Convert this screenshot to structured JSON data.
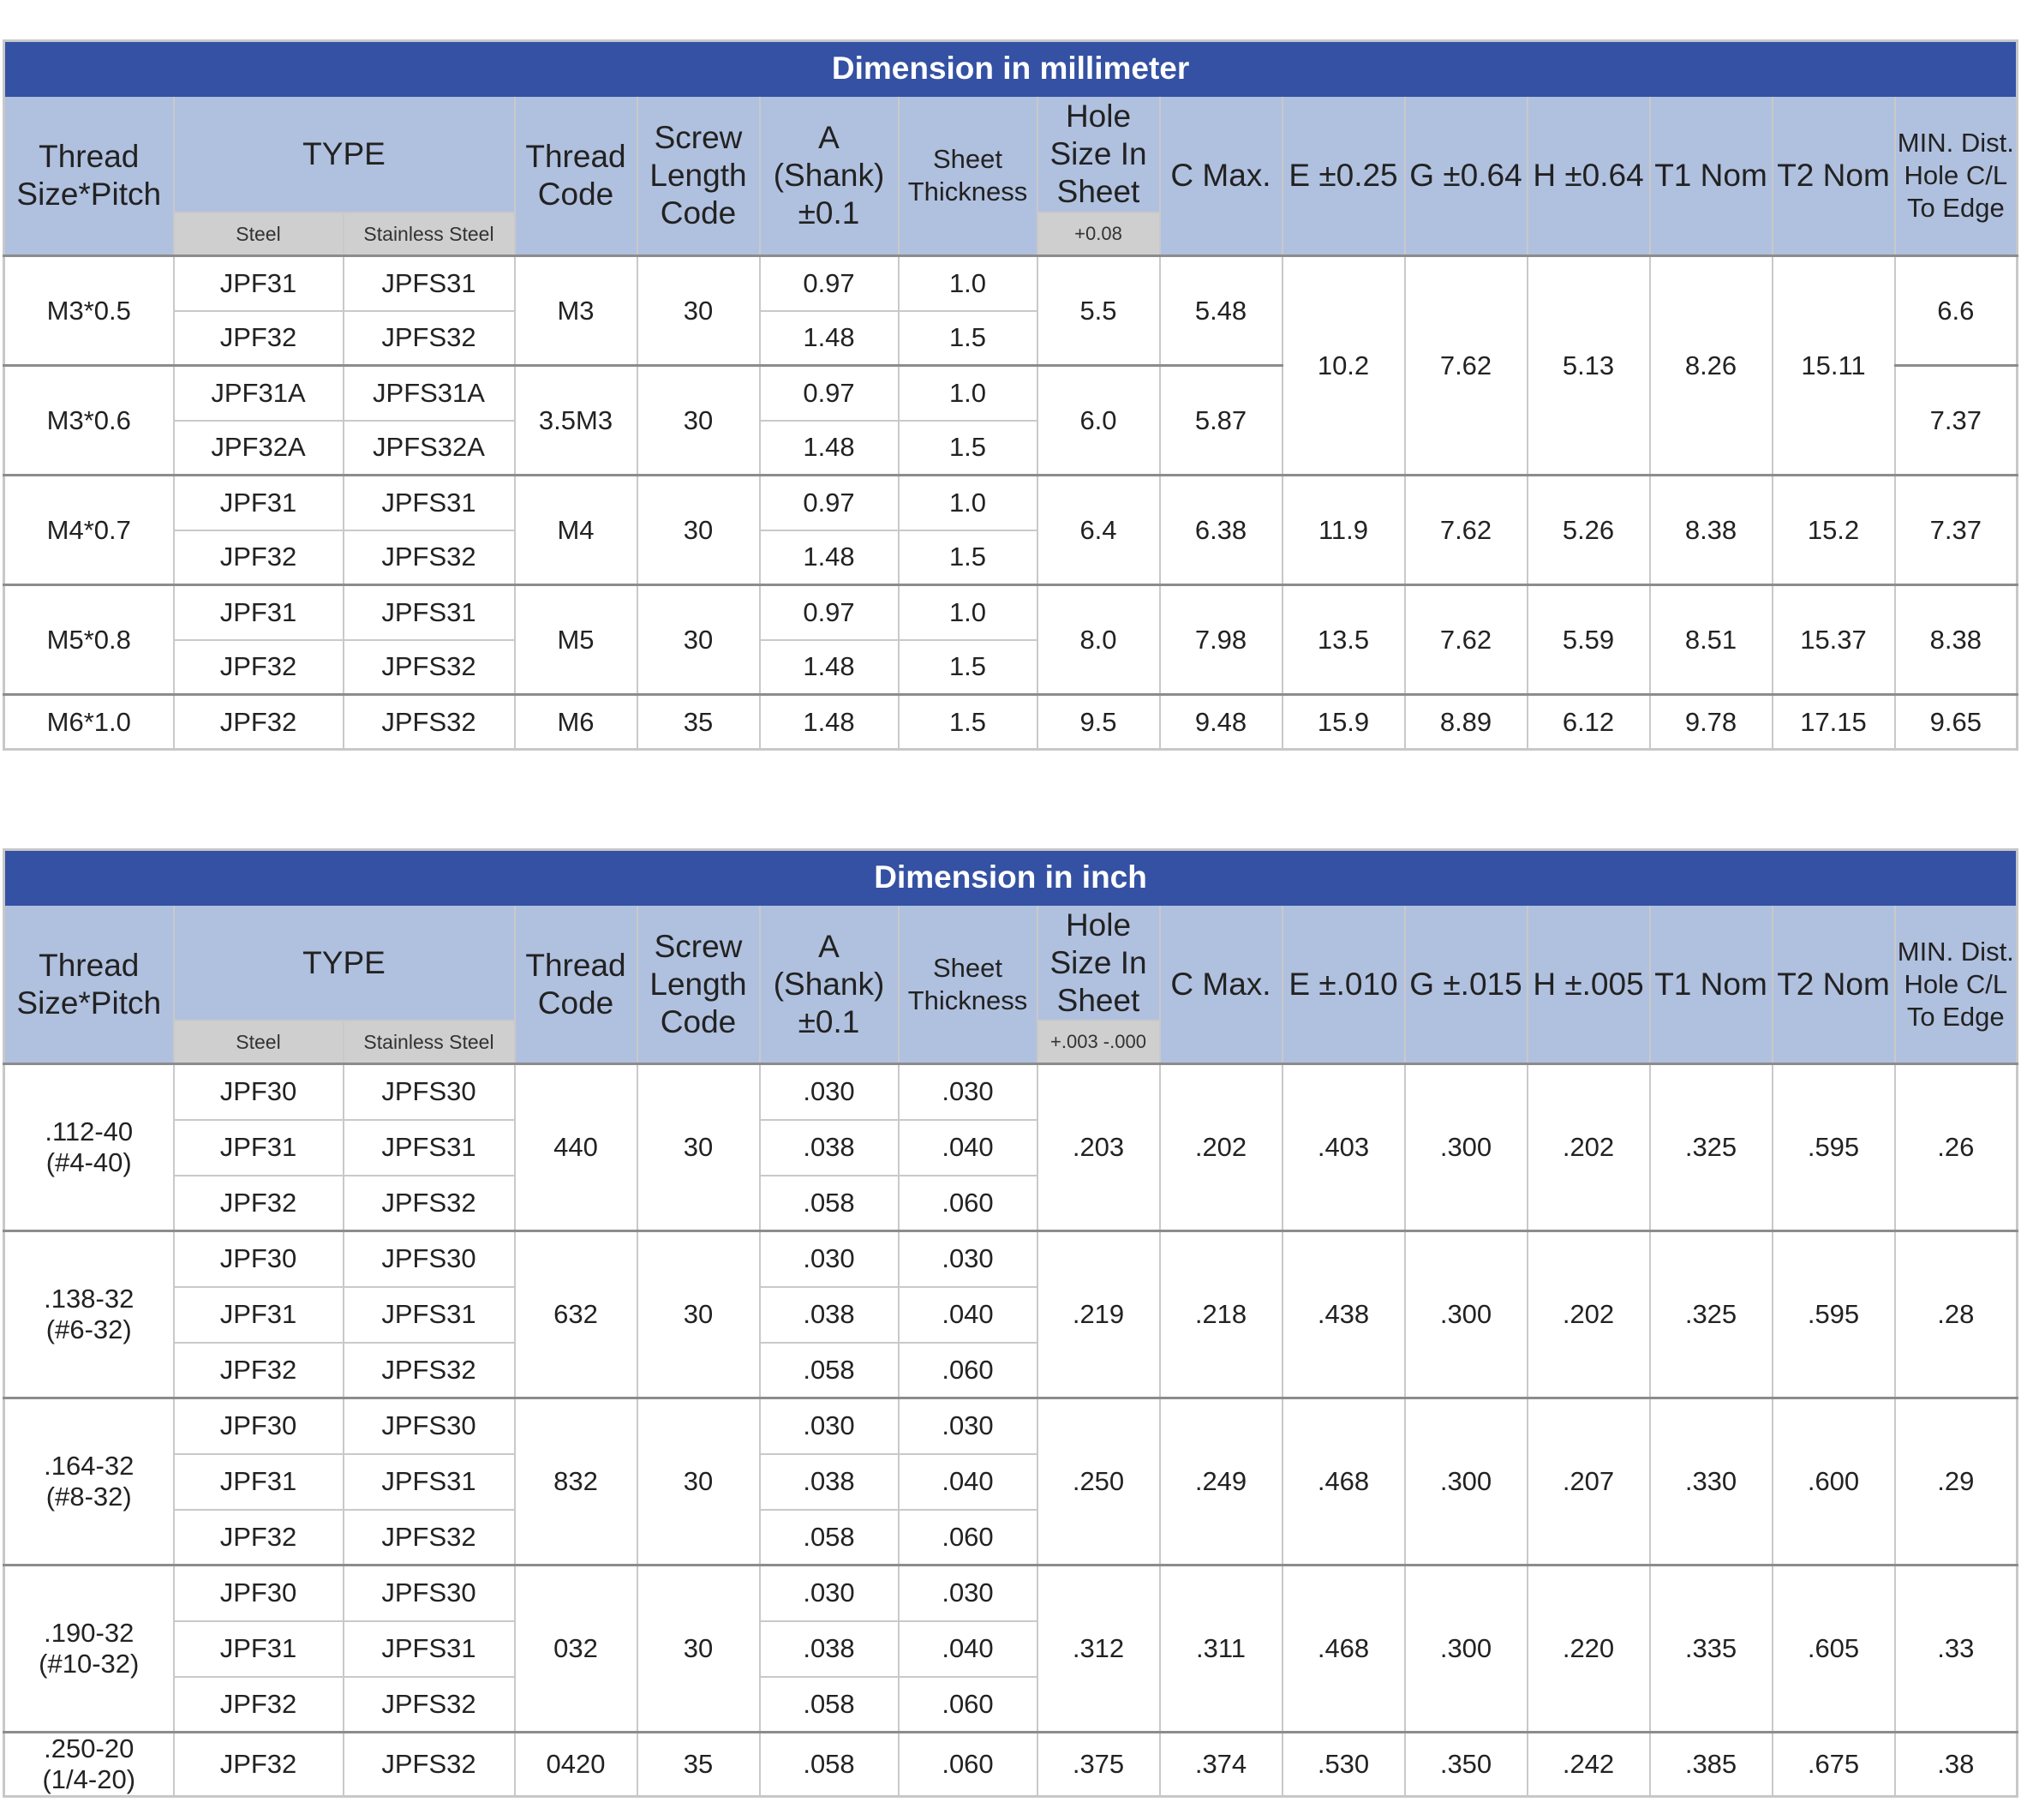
{
  "headers": {
    "thread_size": "Thread Size*Pitch",
    "type": "TYPE",
    "steel": "Steel",
    "stainless": "Stainless Steel",
    "thread_code": "Thread Code",
    "screw_length": "Screw Length Code",
    "a_shank": "A (Shank) ±0.1",
    "sheet_thickness": "Sheet Thickness",
    "hole_size": "Hole Size In Sheet",
    "c_max": "C Max.",
    "t1": "T1 Nom",
    "t2": "T2 Nom",
    "min_dist": "MIN. Dist. Hole C/L To Edge"
  },
  "mm": {
    "title": "Dimension in millimeter",
    "e": "E ±0.25",
    "g": "G ±0.64",
    "h": "H ±0.64",
    "hole_tol": "+0.08",
    "rows": [
      {
        "size": "M3*0.5",
        "code": "M3",
        "len": "30",
        "hole": "5.5",
        "c": "5.48",
        "e": "10.2",
        "g": "7.62",
        "h": "5.13",
        "t1": "8.26",
        "t2": "15.11",
        "min": "6.6",
        "items": [
          {
            "steel": "JPF31",
            "ss": "JPFS31",
            "a": "0.97",
            "sheet": "1.0"
          },
          {
            "steel": "JPF32",
            "ss": "JPFS32",
            "a": "1.48",
            "sheet": "1.5"
          }
        ]
      },
      {
        "size": "M3*0.6",
        "code": "3.5M3",
        "len": "30",
        "hole": "6.0",
        "c": "5.87",
        "min": "7.37",
        "items": [
          {
            "steel": "JPF31A",
            "ss": "JPFS31A",
            "a": "0.97",
            "sheet": "1.0"
          },
          {
            "steel": "JPF32A",
            "ss": "JPFS32A",
            "a": "1.48",
            "sheet": "1.5"
          }
        ]
      },
      {
        "size": "M4*0.7",
        "code": "M4",
        "len": "30",
        "hole": "6.4",
        "c": "6.38",
        "e": "11.9",
        "g": "7.62",
        "h": "5.26",
        "t1": "8.38",
        "t2": "15.2",
        "min": "7.37",
        "items": [
          {
            "steel": "JPF31",
            "ss": "JPFS31",
            "a": "0.97",
            "sheet": "1.0"
          },
          {
            "steel": "JPF32",
            "ss": "JPFS32",
            "a": "1.48",
            "sheet": "1.5"
          }
        ]
      },
      {
        "size": "M5*0.8",
        "code": "M5",
        "len": "30",
        "hole": "8.0",
        "c": "7.98",
        "e": "13.5",
        "g": "7.62",
        "h": "5.59",
        "t1": "8.51",
        "t2": "15.37",
        "min": "8.38",
        "items": [
          {
            "steel": "JPF31",
            "ss": "JPFS31",
            "a": "0.97",
            "sheet": "1.0"
          },
          {
            "steel": "JPF32",
            "ss": "JPFS32",
            "a": "1.48",
            "sheet": "1.5"
          }
        ]
      },
      {
        "size": "M6*1.0",
        "code": "M6",
        "len": "35",
        "hole": "9.5",
        "c": "9.48",
        "e": "15.9",
        "g": "8.89",
        "h": "6.12",
        "t1": "9.78",
        "t2": "17.15",
        "min": "9.65",
        "items": [
          {
            "steel": "JPF32",
            "ss": "JPFS32",
            "a": "1.48",
            "sheet": "1.5"
          }
        ]
      }
    ]
  },
  "inch": {
    "title": "Dimension in inch",
    "e": "E ±.010",
    "g": "G ±.015",
    "h": "H ±.005",
    "hole_tol": "+.003 -.000",
    "rows": [
      {
        "size": ".112-40",
        "size2": "(#4-40)",
        "code": "440",
        "len": "30",
        "hole": ".203",
        "c": ".202",
        "e": ".403",
        "g": ".300",
        "h": ".202",
        "t1": ".325",
        "t2": ".595",
        "min": ".26",
        "items": [
          {
            "steel": "JPF30",
            "ss": "JPFS30",
            "a": ".030",
            "sheet": ".030"
          },
          {
            "steel": "JPF31",
            "ss": "JPFS31",
            "a": ".038",
            "sheet": ".040"
          },
          {
            "steel": "JPF32",
            "ss": "JPFS32",
            "a": ".058",
            "sheet": ".060"
          }
        ]
      },
      {
        "size": ".138-32",
        "size2": "(#6-32)",
        "code": "632",
        "len": "30",
        "hole": ".219",
        "c": ".218",
        "e": ".438",
        "g": ".300",
        "h": ".202",
        "t1": ".325",
        "t2": ".595",
        "min": ".28",
        "items": [
          {
            "steel": "JPF30",
            "ss": "JPFS30",
            "a": ".030",
            "sheet": ".030"
          },
          {
            "steel": "JPF31",
            "ss": "JPFS31",
            "a": ".038",
            "sheet": ".040"
          },
          {
            "steel": "JPF32",
            "ss": "JPFS32",
            "a": ".058",
            "sheet": ".060"
          }
        ]
      },
      {
        "size": ".164-32",
        "size2": "(#8-32)",
        "code": "832",
        "len": "30",
        "hole": ".250",
        "c": ".249",
        "e": ".468",
        "g": ".300",
        "h": ".207",
        "t1": ".330",
        "t2": ".600",
        "min": ".29",
        "items": [
          {
            "steel": "JPF30",
            "ss": "JPFS30",
            "a": ".030",
            "sheet": ".030"
          },
          {
            "steel": "JPF31",
            "ss": "JPFS31",
            "a": ".038",
            "sheet": ".040"
          },
          {
            "steel": "JPF32",
            "ss": "JPFS32",
            "a": ".058",
            "sheet": ".060"
          }
        ]
      },
      {
        "size": ".190-32",
        "size2": "(#10-32)",
        "code": "032",
        "len": "30",
        "hole": ".312",
        "c": ".311",
        "e": ".468",
        "g": ".300",
        "h": ".220",
        "t1": ".335",
        "t2": ".605",
        "min": ".33",
        "items": [
          {
            "steel": "JPF30",
            "ss": "JPFS30",
            "a": ".030",
            "sheet": ".030"
          },
          {
            "steel": "JPF31",
            "ss": "JPFS31",
            "a": ".038",
            "sheet": ".040"
          },
          {
            "steel": "JPF32",
            "ss": "JPFS32",
            "a": ".058",
            "sheet": ".060"
          }
        ]
      },
      {
        "size": ".250-20",
        "size2": "(1/4-20)",
        "code": "0420",
        "len": "35",
        "hole": ".375",
        "c": ".374",
        "e": ".530",
        "g": ".350",
        "h": ".242",
        "t1": ".385",
        "t2": ".675",
        "min": ".38",
        "items": [
          {
            "steel": "JPF32",
            "ss": "JPFS32",
            "a": ".058",
            "sheet": ".060"
          }
        ]
      }
    ]
  }
}
